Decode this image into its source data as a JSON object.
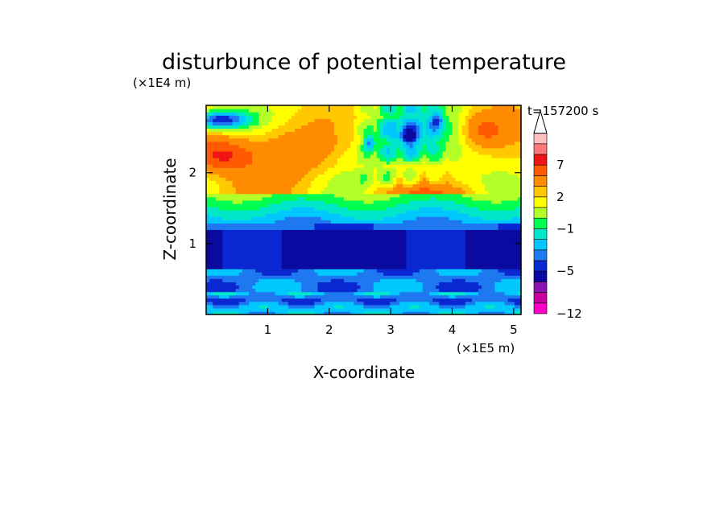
{
  "chart_data": {
    "type": "heatmap",
    "title": "disturbunce of potential temperature",
    "xlabel": "X-coordinate",
    "ylabel": "Z-coordinate",
    "x_scale_label": "(×1E5 m)",
    "y_scale_label": "(×1E4 m)",
    "time_label": "t=157200 s",
    "xlim": [
      0,
      5.12
    ],
    "ylim": [
      0,
      2.95
    ],
    "x_ticks": [
      "1",
      "2",
      "3",
      "4",
      "5"
    ],
    "y_ticks": [
      "1",
      "2"
    ],
    "colorbar": {
      "labels": [
        "7",
        "2",
        "−1",
        "−5",
        "−12"
      ],
      "levels": [
        -12,
        -11,
        -9,
        -7,
        -5,
        -4,
        -3,
        -2,
        -1,
        0,
        1,
        2,
        3,
        5,
        7,
        9,
        12
      ],
      "colors": [
        "#ff00c8",
        "#c8009e",
        "#8c14b4",
        "#0a0aa0",
        "#0a28d2",
        "#1e78f0",
        "#00c8ff",
        "#00e6c8",
        "#00ff50",
        "#b4ff28",
        "#ffff00",
        "#ffc800",
        "#ff8c00",
        "#ff5a00",
        "#f01414",
        "#ff7878",
        "#ffc0c0"
      ],
      "extend": "max"
    },
    "grid": false
  }
}
